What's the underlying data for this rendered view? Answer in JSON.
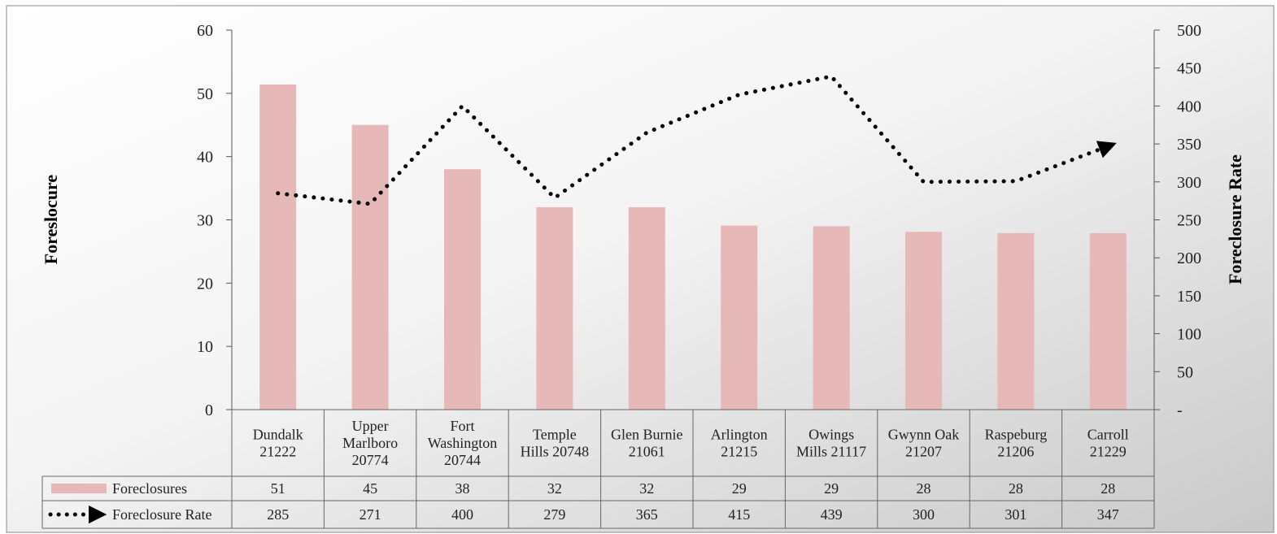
{
  "chart_data": {
    "type": "bar",
    "title": "",
    "categories": [
      [
        "Dundalk",
        "21222"
      ],
      [
        "Upper",
        "Marlboro",
        "20774"
      ],
      [
        "Fort",
        "Washington",
        "20744"
      ],
      [
        "Temple",
        "Hills 20748"
      ],
      [
        "Glen Burnie",
        "21061"
      ],
      [
        "Arlington",
        "21215"
      ],
      [
        "Owings",
        "Mills 21117"
      ],
      [
        "Gwynn Oak",
        "21207"
      ],
      [
        "Raspeburg",
        "21206"
      ],
      [
        "Carroll",
        "21229"
      ]
    ],
    "series": [
      {
        "name": "Foreclosures",
        "type": "bar",
        "axis": "left",
        "values": [
          51,
          45,
          38,
          32,
          32,
          29,
          29,
          28,
          28,
          28
        ],
        "plotted": [
          51.4,
          45,
          38,
          32,
          32,
          29.1,
          29,
          28.1,
          27.9,
          27.9
        ],
        "color": "#e6b8b7"
      },
      {
        "name": "Foreclosure Rate",
        "type": "line",
        "style": "dotted-arrow",
        "axis": "right",
        "values": [
          285,
          271,
          400,
          279,
          365,
          415,
          439,
          300,
          301,
          347
        ],
        "color": "#000000"
      }
    ],
    "ylabel": "Foreslocure",
    "ylabel_right": "Foreclosure Rate",
    "ylim": [
      0,
      60
    ],
    "yticks": [
      "0",
      "10",
      "20",
      "30",
      "40",
      "50",
      "60"
    ],
    "ylim_right": [
      0,
      500
    ],
    "yticks_right": [
      "-",
      "50",
      "100",
      "150",
      "200",
      "250",
      "300",
      "350",
      "400",
      "450",
      "500"
    ],
    "grid": false,
    "legend": "data-table-left",
    "data_table": true
  }
}
